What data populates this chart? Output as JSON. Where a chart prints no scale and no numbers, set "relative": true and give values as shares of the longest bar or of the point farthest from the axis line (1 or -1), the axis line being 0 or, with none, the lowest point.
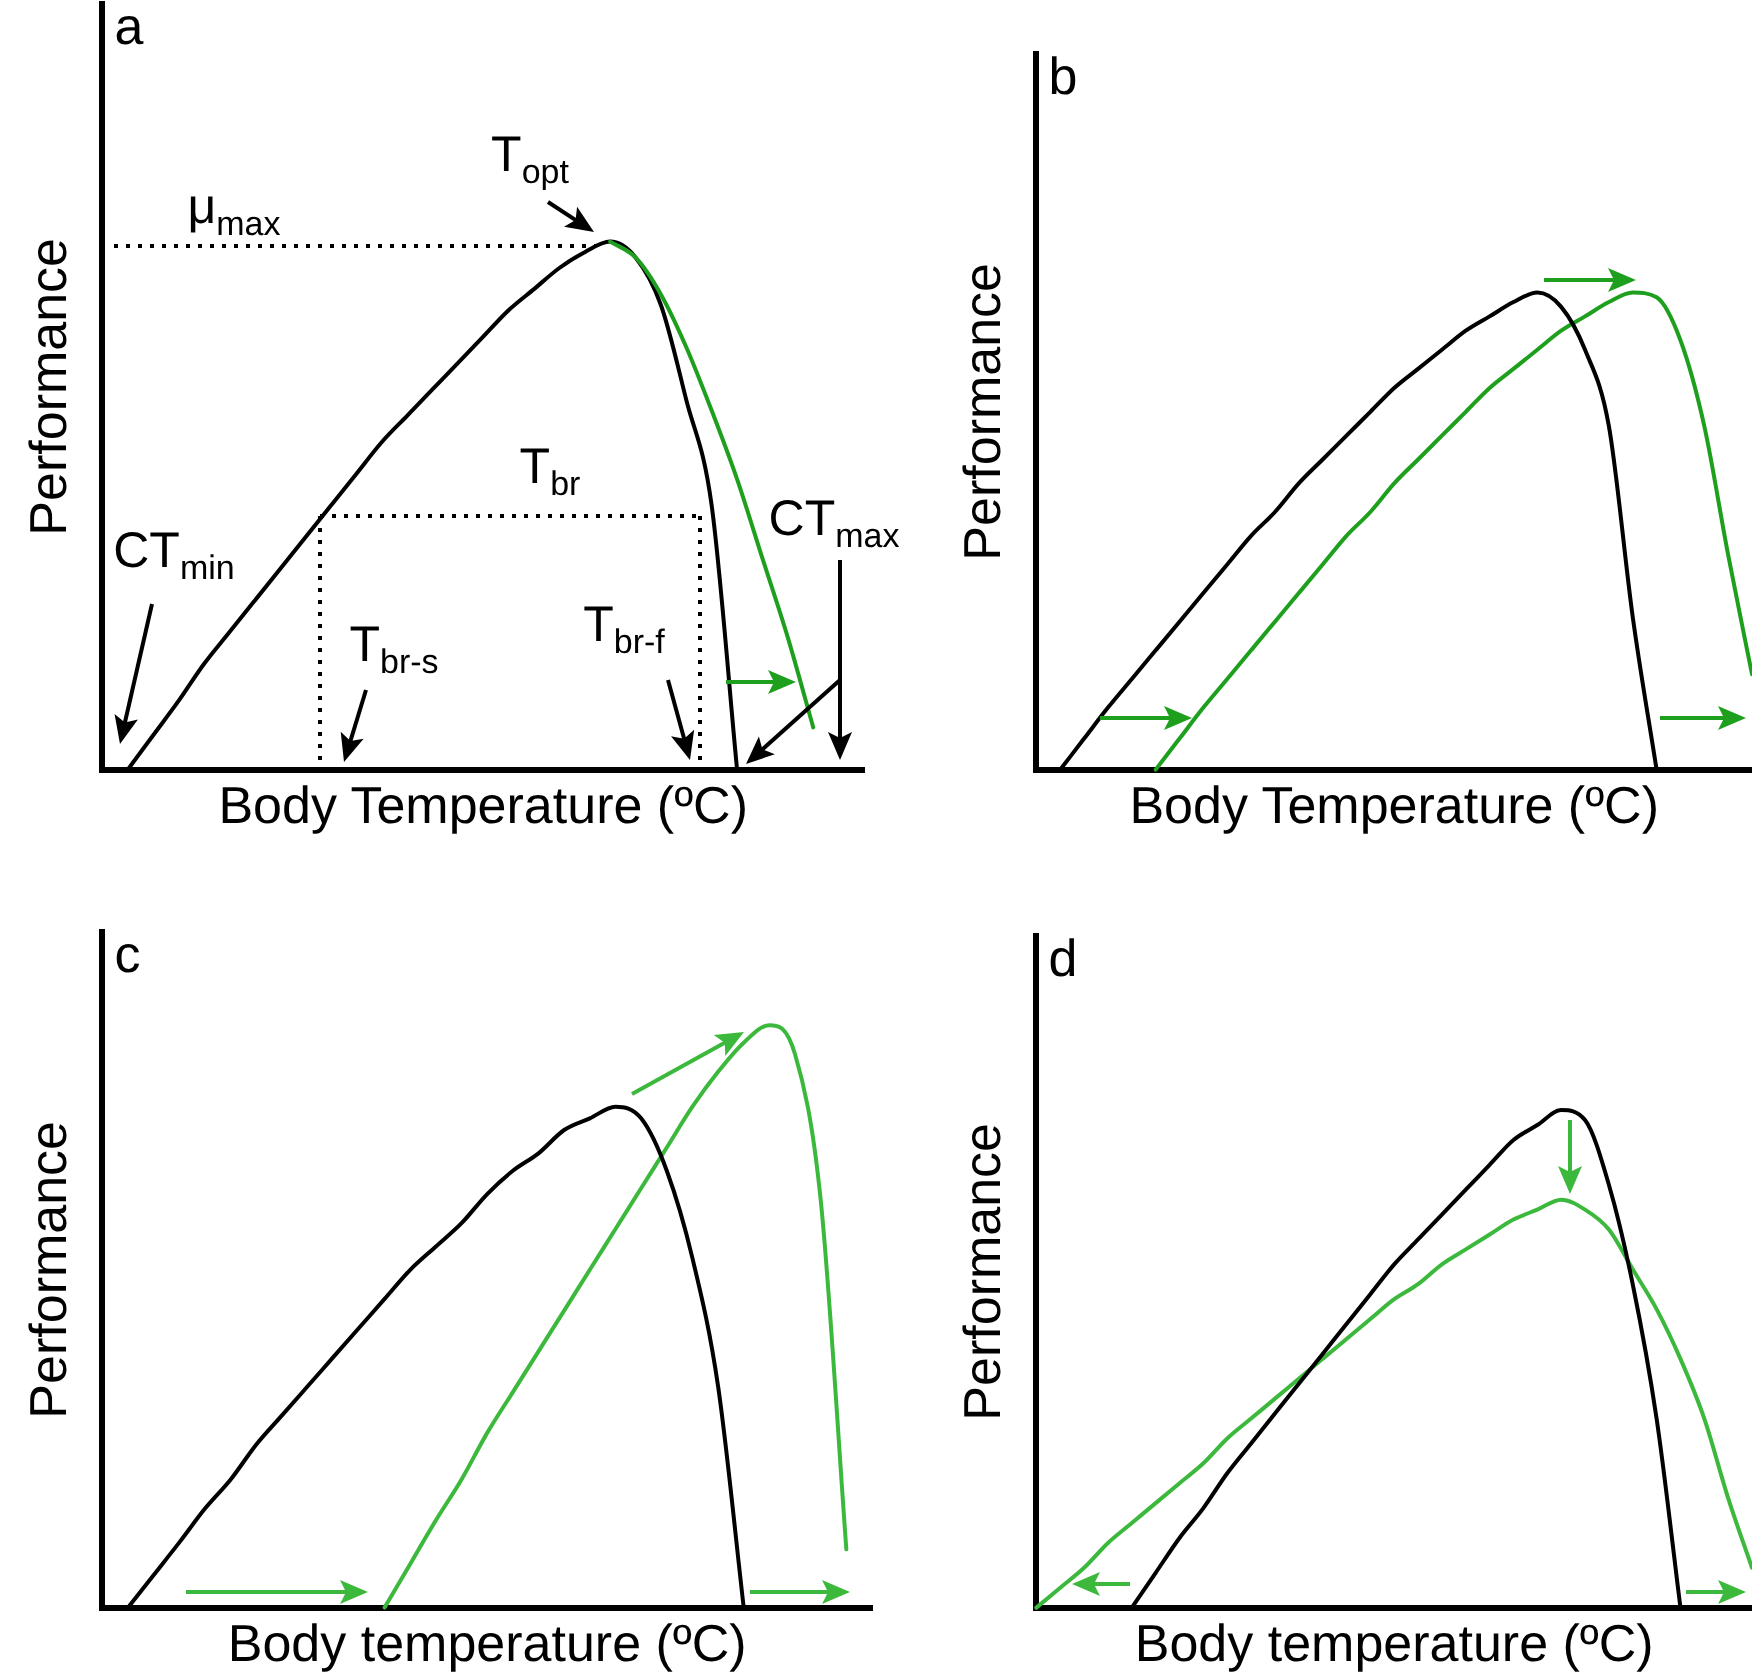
{
  "chart_data": [
    {
      "type": "line",
      "title": "a",
      "xlabel": "Body Temperature (ºC)",
      "ylabel": "Performance",
      "relative": true,
      "grid": false,
      "legend": false,
      "marker": "none",
      "tick_labels": false,
      "categories": [
        null,
        null,
        null,
        null,
        null,
        null,
        null,
        null,
        null,
        null,
        null,
        null,
        null,
        null,
        null,
        null,
        null,
        null,
        null,
        null,
        null,
        null,
        null,
        null,
        null,
        null,
        null,
        null,
        null,
        null,
        null
      ],
      "series": [
        {
          "color": "#1ea01e",
          "values": [
            null,
            null,
            null,
            null,
            null,
            null,
            null,
            null,
            null,
            null,
            null,
            null,
            null,
            null,
            null,
            null,
            null,
            null,
            null,
            null,
            1,
            0.97,
            0.9,
            0.8,
            0.68,
            0.55,
            0.4,
            0.25,
            0.08,
            null,
            null
          ]
        },
        {
          "color": "#000000",
          "values": [
            null,
            0,
            0.065,
            0.13,
            0.2,
            0.26,
            0.32,
            0.38,
            0.44,
            0.5,
            0.56,
            0.62,
            0.67,
            0.72,
            0.77,
            0.82,
            0.87,
            0.91,
            0.95,
            0.98,
            1,
            0.97,
            0.88,
            0.7,
            0.5,
            0,
            null,
            null,
            null,
            null,
            null
          ]
        }
      ],
      "annotations": [
        "T$_{opt}$",
        "μ$_{max}$",
        "T$_{br}$",
        "CT$_{max}$",
        "CT$_{min}$",
        "T$_{br-s}$",
        "T$_{br-f}$"
      ]
    },
    {
      "type": "line",
      "title": "b",
      "xlabel": "Body Temperature (ºC)",
      "ylabel": "Performance",
      "relative": true,
      "grid": false,
      "legend": false,
      "marker": "none",
      "tick_labels": false,
      "categories": [
        null,
        null,
        null,
        null,
        null,
        null,
        null,
        null,
        null,
        null,
        null,
        null,
        null,
        null,
        null,
        null,
        null,
        null,
        null,
        null,
        null,
        null,
        null,
        null,
        null,
        null,
        null,
        null,
        null,
        null,
        null
      ],
      "series": [
        {
          "color": "#000000",
          "values": [
            null,
            0,
            0.065,
            0.13,
            0.19,
            0.25,
            0.31,
            0.37,
            0.43,
            0.49,
            0.54,
            0.6,
            0.65,
            0.7,
            0.75,
            0.8,
            0.84,
            0.88,
            0.92,
            0.95,
            0.98,
            1,
            0.97,
            0.88,
            0.72,
            0.32,
            0,
            null,
            null,
            null,
            null
          ]
        },
        {
          "color": "#1ea01e",
          "values": [
            null,
            null,
            null,
            null,
            null,
            0,
            0.065,
            0.13,
            0.19,
            0.25,
            0.31,
            0.37,
            0.43,
            0.49,
            0.54,
            0.6,
            0.65,
            0.7,
            0.75,
            0.8,
            0.84,
            0.88,
            0.92,
            0.95,
            0.98,
            1,
            0.99,
            0.9,
            0.72,
            0.45,
            0.2
          ]
        }
      ]
    },
    {
      "type": "line",
      "title": "c",
      "xlabel": "Body temperature (ºC)",
      "ylabel": "Performance",
      "relative": true,
      "grid": false,
      "legend": false,
      "marker": "none",
      "tick_labels": false,
      "categories": [
        null,
        null,
        null,
        null,
        null,
        null,
        null,
        null,
        null,
        null,
        null,
        null,
        null,
        null,
        null,
        null,
        null,
        null,
        null,
        null,
        null,
        null,
        null,
        null,
        null,
        null,
        null,
        null,
        null,
        null,
        null
      ],
      "series": [
        {
          "color": "#000000",
          "values": [
            null,
            0,
            0.056,
            0.112,
            0.17,
            0.22,
            0.28,
            0.33,
            0.38,
            0.43,
            0.48,
            0.53,
            0.58,
            0.62,
            0.66,
            0.71,
            0.75,
            0.78,
            0.82,
            0.84,
            0.86,
            0.84,
            0.75,
            0.6,
            0.38,
            0,
            null,
            null,
            null,
            null,
            null
          ]
        },
        {
          "color": "#3cb93c",
          "values": [
            null,
            null,
            null,
            null,
            null,
            null,
            null,
            null,
            null,
            null,
            null,
            0,
            0.075,
            0.15,
            0.22,
            0.3,
            0.37,
            0.44,
            0.51,
            0.58,
            0.65,
            0.72,
            0.79,
            0.86,
            0.92,
            0.97,
            1,
            0.95,
            0.7,
            0.1,
            null
          ]
        }
      ]
    },
    {
      "type": "line",
      "title": "d",
      "xlabel": "Body temperature (ºC)",
      "ylabel": "Performance",
      "relative": true,
      "grid": false,
      "legend": false,
      "marker": "none",
      "tick_labels": false,
      "categories": [
        null,
        null,
        null,
        null,
        null,
        null,
        null,
        null,
        null,
        null,
        null,
        null,
        null,
        null,
        null,
        null,
        null,
        null,
        null,
        null,
        null,
        null,
        null,
        null,
        null,
        null,
        null,
        null,
        null,
        null,
        null
      ],
      "series": [
        {
          "color": "#000000",
          "values": [
            null,
            null,
            null,
            null,
            0,
            0.07,
            0.14,
            0.2,
            0.27,
            0.33,
            0.39,
            0.45,
            0.51,
            0.57,
            0.63,
            0.69,
            0.74,
            0.79,
            0.84,
            0.89,
            0.94,
            0.97,
            1,
            0.98,
            0.85,
            0.65,
            0.38,
            0,
            null,
            null,
            null
          ]
        },
        {
          "color": "#3cb93c",
          "values": [
            0,
            0.04,
            0.08,
            0.13,
            0.17,
            0.21,
            0.25,
            0.29,
            0.34,
            0.38,
            0.42,
            0.46,
            0.5,
            0.54,
            0.58,
            0.62,
            0.65,
            0.69,
            0.72,
            0.75,
            0.78,
            0.8,
            0.82,
            0.8,
            0.76,
            0.68,
            0.6,
            0.5,
            0.38,
            0.22,
            0.08
          ]
        }
      ]
    }
  ]
}
